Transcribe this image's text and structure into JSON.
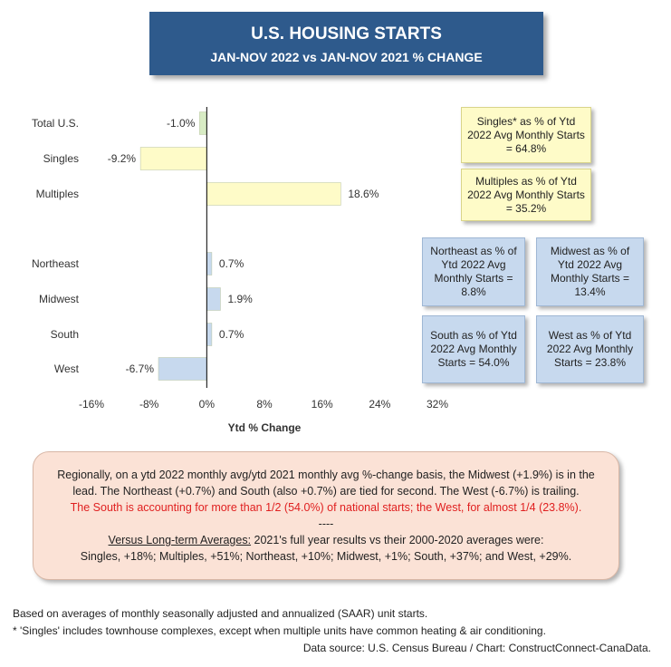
{
  "title": "U.S. HOUSING STARTS",
  "subtitle": "JAN-NOV 2022 vs JAN-NOV 2021 % CHANGE",
  "chart_data": {
    "type": "bar",
    "orientation": "horizontal",
    "categories": [
      "Total U.S.",
      "Singles",
      "Multiples",
      "Northeast",
      "Midwest",
      "South",
      "West"
    ],
    "values": [
      -1.0,
      -9.2,
      18.6,
      0.7,
      1.9,
      0.7,
      -6.7
    ],
    "value_labels": [
      "-1.0%",
      "-9.2%",
      "18.6%",
      "0.7%",
      "1.9%",
      "0.7%",
      "-6.7%"
    ],
    "bar_colors": [
      "#d8ecc4",
      "#fefbc8",
      "#fefbc8",
      "#c7d9ee",
      "#c7d9ee",
      "#c7d9ee",
      "#c7d9ee"
    ],
    "xlim": [
      -16,
      32
    ],
    "xticks": [
      "-16%",
      "-8%",
      "0%",
      "8%",
      "16%",
      "24%",
      "32%"
    ],
    "xlabel": "Ytd % Change",
    "grid": false
  },
  "annotations": {
    "singles_share": "Singles* as % of Ytd 2022 Avg Monthly Starts = 64.8%",
    "multiples_share": "Multiples as % of Ytd 2022 Avg Monthly Starts = 35.2%",
    "northeast_share": "Northeast as % of Ytd 2022 Avg Monthly Starts = 8.8%",
    "midwest_share": "Midwest as % of Ytd 2022 Avg Monthly Starts = 13.4%",
    "south_share": "South as % of Ytd 2022 Avg Monthly Starts = 54.0%",
    "west_share": "West as % of Ytd 2022 Avg Monthly Starts = 23.8%"
  },
  "summary": {
    "line1": "Regionally, on a ytd 2022 monthly avg/ytd 2021 monthly avg %-change basis, the Midwest (+1.9%) is in the lead. The Northeast (+0.7%) and South (also +0.7%) are tied for second. The West (-6.7%) is trailing.",
    "highlight": "The South is accounting for more than 1/2 (54.0%) of national starts; the West, for almost 1/4 (23.8%).",
    "separator": "----",
    "longterm_label": "Versus Long-term Averages:",
    "longterm_text": " 2021's full year results vs their 2000-2020 averages were:",
    "longterm_values": "Singles, +18%; Multiples, +51%; Northeast, +10%; Midwest, +1%; South, +37%; and West, +29%."
  },
  "footnotes": {
    "note1": "Based on averages of monthly seasonally adjusted and annualized (SAAR) unit starts.",
    "note2": "* 'Singles' includes townhouse complexes, except when multiple units have common heating & air conditioning.",
    "source": "Data source: U.S. Census Bureau / Chart: ConstructConnect-CanaData."
  }
}
